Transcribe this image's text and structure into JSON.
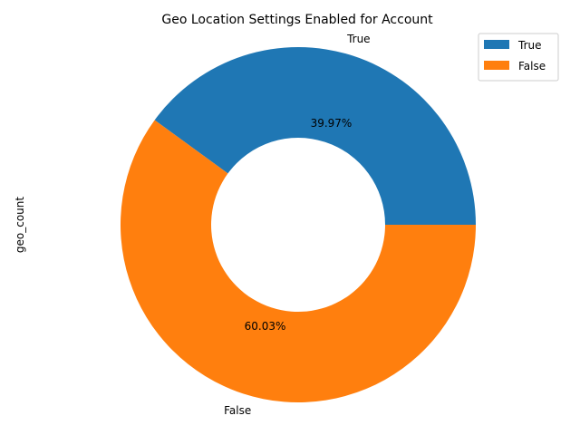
{
  "chart_data": {
    "type": "pie",
    "title": "Geo Location Settings Enabled for Account",
    "ylabel": "geo_count",
    "categories": [
      "True",
      "False"
    ],
    "values": [
      39.97,
      60.03
    ],
    "percent_labels": [
      "39.97%",
      "60.03%"
    ],
    "colors": [
      "#1f77b4",
      "#ff7f0e"
    ],
    "donut": true,
    "start_angle_deg": 0,
    "direction": "counterclockwise",
    "legend": {
      "placement": "top-right",
      "entries": [
        "True",
        "False"
      ]
    }
  }
}
